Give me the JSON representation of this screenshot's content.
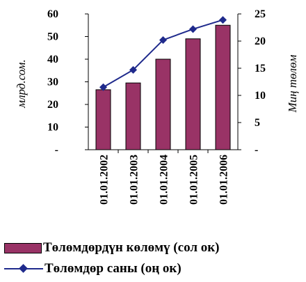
{
  "chart_data": {
    "type": "bar",
    "categories": [
      "01.01.2002",
      "01.01.2003",
      "01.01.2004",
      "01.01.2005",
      "01.01.2006"
    ],
    "series": [
      {
        "name": "Төлөмдөрдүн көлөмү (сол ок)",
        "type": "bar",
        "axis": "left",
        "values": [
          26.5,
          29.5,
          40,
          49,
          55
        ],
        "color": "#993366"
      },
      {
        "name": "Төлөмдөр саны (оң ок)",
        "type": "line",
        "axis": "right",
        "values": [
          11.5,
          14.7,
          20.2,
          22.2,
          23.9
        ],
        "color": "#1f2a8c",
        "marker": "diamond"
      }
    ],
    "left_axis": {
      "label": "млрд.сом.",
      "ylim": [
        0,
        60
      ],
      "ticks": [
        0,
        10,
        20,
        30,
        40,
        50,
        60
      ],
      "tick_labels": [
        "-",
        "10",
        "20",
        "30",
        "40",
        "50",
        "60"
      ]
    },
    "right_axis": {
      "label": "Миң төлөм",
      "ylim": [
        0,
        25
      ],
      "ticks": [
        0,
        5,
        10,
        15,
        20,
        25
      ],
      "tick_labels": [
        "-",
        "5",
        "10",
        "15",
        "20",
        "25"
      ]
    },
    "grid": false,
    "legend_position": "bottom"
  }
}
